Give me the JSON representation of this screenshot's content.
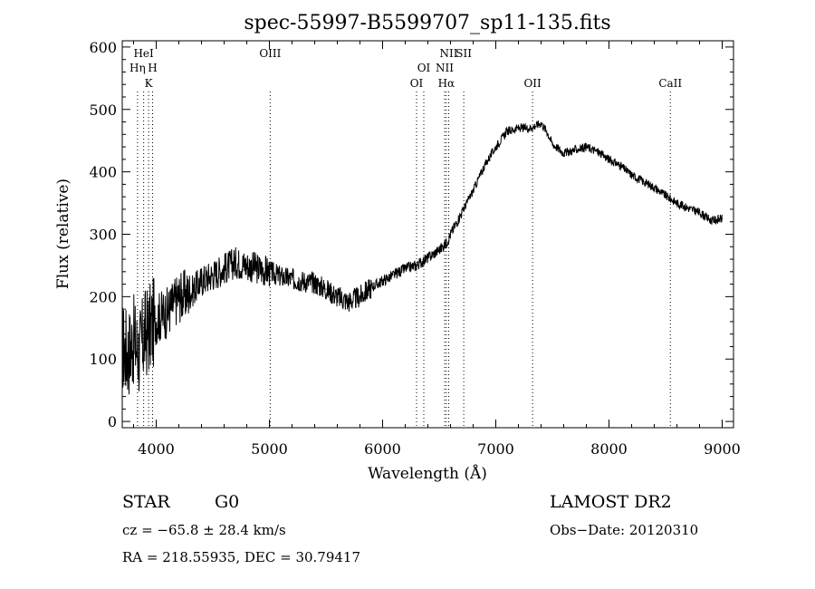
{
  "chart_data": {
    "type": "line",
    "title": "spec-55997-B5599707_sp11-135.fits",
    "xlabel": "Wavelength (Å)",
    "ylabel": "Flux (relative)",
    "xlim": [
      3700,
      9100
    ],
    "ylim": [
      -10,
      610
    ],
    "x_ticks": [
      4000,
      5000,
      6000,
      7000,
      8000,
      9000
    ],
    "y_ticks": [
      0,
      100,
      200,
      300,
      400,
      500,
      600
    ],
    "grid": false,
    "legend": "none",
    "series": [
      {
        "x": [
          3700,
          3750,
          3800,
          3850,
          3900,
          3950,
          4000,
          4100,
          4200,
          4300,
          4400,
          4500,
          4600,
          4700,
          4800,
          4900,
          5000,
          5100,
          5200,
          5300,
          5400,
          5500,
          5600,
          5700,
          5800,
          5900,
          6000,
          6100,
          6200,
          6300,
          6400,
          6500,
          6560,
          6600,
          6700,
          6800,
          6900,
          7000,
          7100,
          7200,
          7300,
          7400,
          7450,
          7500,
          7600,
          7700,
          7800,
          7900,
          8000,
          8100,
          8200,
          8300,
          8400,
          8500,
          8600,
          8700,
          8800,
          8900,
          9000
        ],
        "y": [
          120,
          110,
          130,
          110,
          140,
          150,
          165,
          175,
          200,
          205,
          225,
          235,
          245,
          255,
          250,
          245,
          240,
          232,
          228,
          225,
          222,
          212,
          200,
          192,
          200,
          215,
          225,
          235,
          245,
          250,
          262,
          275,
          285,
          300,
          335,
          370,
          410,
          440,
          465,
          470,
          470,
          478,
          465,
          445,
          430,
          435,
          440,
          432,
          420,
          410,
          395,
          385,
          375,
          362,
          350,
          342,
          335,
          322,
          325
        ]
      }
    ],
    "line_markers": [
      {
        "label": "HeI",
        "x": 3889,
        "row": 1
      },
      {
        "label": "Hη",
        "x": 3835,
        "row": 2
      },
      {
        "label": "H",
        "x": 3968,
        "row": 2
      },
      {
        "label": "K",
        "x": 3933,
        "row": 3
      },
      {
        "label": "OIII",
        "x": 5007,
        "row": 1
      },
      {
        "label": "OI",
        "x": 6364,
        "row": 2
      },
      {
        "label": "OI",
        "x": 6300,
        "row": 3
      },
      {
        "label": "NII",
        "x": 6584,
        "row": 1
      },
      {
        "label": "SII",
        "x": 6717,
        "row": 1
      },
      {
        "label": "NII",
        "x": 6548,
        "row": 2
      },
      {
        "label": "Hα",
        "x": 6563,
        "row": 3
      },
      {
        "label": "OII",
        "x": 7325,
        "row": 3
      },
      {
        "label": "CaII",
        "x": 8542,
        "row": 3
      }
    ]
  },
  "info": {
    "class": "STAR",
    "subclass": "G0",
    "survey": "LAMOST DR2",
    "redshift": "cz = −65.8 ± 28.4 km/s",
    "obs_date": "Obs−Date: 20120310",
    "coords": "RA = 218.55935, DEC =  30.79417"
  }
}
